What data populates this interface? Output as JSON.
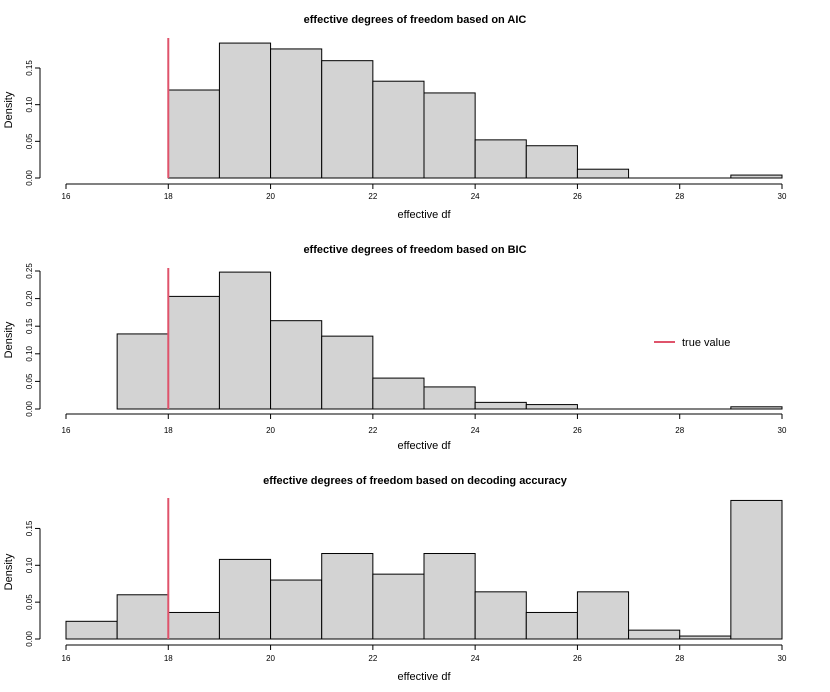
{
  "colors": {
    "bar_fill": "#d3d3d3",
    "true_value_line": "#df536b"
  },
  "legend": {
    "label": "true value"
  },
  "chart_data": [
    {
      "type": "bar",
      "title": "effective degrees of freedom based on AIC",
      "xlabel": "effective df",
      "ylabel": "Density",
      "xlim": [
        16,
        30
      ],
      "ylim": [
        0,
        0.18
      ],
      "x_ticks": [
        "16",
        "18",
        "20",
        "22",
        "24",
        "26",
        "28",
        "30"
      ],
      "y_ticks": [
        "0.00",
        "0.05",
        "0.10",
        "0.15"
      ],
      "bins": [
        [
          18,
          19
        ],
        [
          19,
          20
        ],
        [
          20,
          21
        ],
        [
          21,
          22
        ],
        [
          22,
          23
        ],
        [
          23,
          24
        ],
        [
          24,
          25
        ],
        [
          25,
          26
        ],
        [
          26,
          27
        ],
        [
          27,
          28
        ],
        [
          28,
          29
        ],
        [
          29,
          30
        ]
      ],
      "values": [
        0.12,
        0.184,
        0.176,
        0.16,
        0.132,
        0.116,
        0.052,
        0.044,
        0.012,
        0.0,
        0.0,
        0.004
      ],
      "reference_x": 18
    },
    {
      "type": "bar",
      "title": "effective degrees of freedom based on BIC",
      "xlabel": "effective df",
      "ylabel": "Density",
      "xlim": [
        16,
        30
      ],
      "ylim": [
        0,
        0.255
      ],
      "x_ticks": [
        "16",
        "18",
        "20",
        "22",
        "24",
        "26",
        "28",
        "30"
      ],
      "y_ticks": [
        "0.00",
        "0.05",
        "0.10",
        "0.15",
        "0.20",
        "0.25"
      ],
      "bins": [
        [
          17,
          18
        ],
        [
          18,
          19
        ],
        [
          19,
          20
        ],
        [
          20,
          21
        ],
        [
          21,
          22
        ],
        [
          22,
          23
        ],
        [
          23,
          24
        ],
        [
          24,
          25
        ],
        [
          25,
          26
        ],
        [
          26,
          27
        ],
        [
          27,
          28
        ],
        [
          28,
          29
        ],
        [
          29,
          30
        ]
      ],
      "values": [
        0.136,
        0.204,
        0.248,
        0.16,
        0.132,
        0.056,
        0.04,
        0.012,
        0.008,
        0.0,
        0.0,
        0.0,
        0.004
      ],
      "reference_x": 18,
      "legend_position": "right"
    },
    {
      "type": "bar",
      "title": "effective degrees of freedom based on decoding accuracy",
      "xlabel": "effective df",
      "ylabel": "Density",
      "xlim": [
        16,
        30
      ],
      "ylim": [
        0,
        0.19
      ],
      "x_ticks": [
        "16",
        "18",
        "20",
        "22",
        "24",
        "26",
        "28",
        "30"
      ],
      "y_ticks": [
        "0.00",
        "0.05",
        "0.10",
        "0.15"
      ],
      "bins": [
        [
          16,
          17
        ],
        [
          17,
          18
        ],
        [
          18,
          19
        ],
        [
          19,
          20
        ],
        [
          20,
          21
        ],
        [
          21,
          22
        ],
        [
          22,
          23
        ],
        [
          23,
          24
        ],
        [
          24,
          25
        ],
        [
          25,
          26
        ],
        [
          26,
          27
        ],
        [
          27,
          28
        ],
        [
          28,
          29
        ],
        [
          29,
          30
        ]
      ],
      "values": [
        0.024,
        0.06,
        0.036,
        0.108,
        0.08,
        0.116,
        0.088,
        0.116,
        0.064,
        0.036,
        0.064,
        0.012,
        0.004,
        0.188
      ],
      "reference_x": 18
    }
  ]
}
